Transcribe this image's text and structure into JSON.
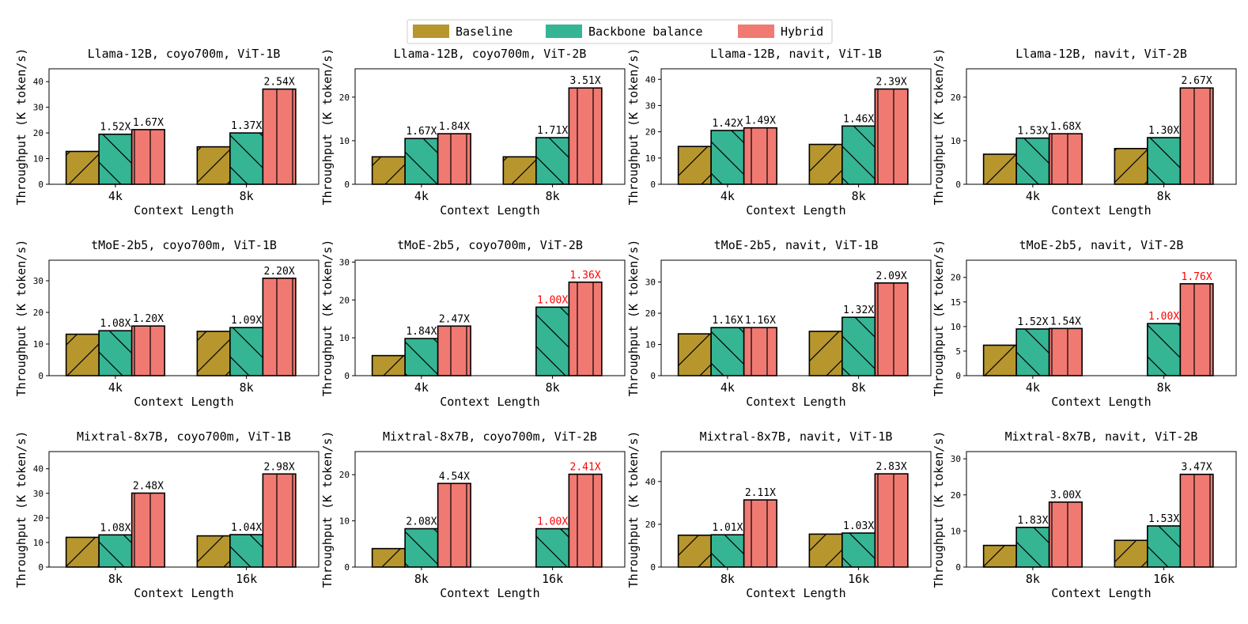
{
  "legend": {
    "items": [
      {
        "label": "Baseline",
        "color": "#B8962E",
        "hatch": "forward"
      },
      {
        "label": "Backbone balance",
        "color": "#35B594",
        "hatch": "back"
      },
      {
        "label": "Hybrid",
        "color": "#F07A72",
        "hatch": "vertical"
      }
    ],
    "placement": "top-center"
  },
  "highlight_color": "#FF0000",
  "chart_data": [
    {
      "type": "bar",
      "title": "Llama-12B, coyo700m, ViT-1B",
      "xlabel": "Context Length",
      "ylabel": "Throughput (K token/s)",
      "categories": [
        "4k",
        "8k"
      ],
      "ylim": [
        0,
        45
      ],
      "yticks": [
        0,
        10,
        20,
        30,
        40
      ],
      "grid": false,
      "series": [
        {
          "name": "Baseline",
          "values": [
            12.8,
            14.6
          ]
        },
        {
          "name": "Backbone balance",
          "values": [
            19.5,
            20.0
          ]
        },
        {
          "name": "Hybrid",
          "values": [
            21.3,
            37.1
          ]
        }
      ],
      "annotations": [
        {
          "category": "4k",
          "series": "Backbone balance",
          "text": "1.52X"
        },
        {
          "category": "4k",
          "series": "Hybrid",
          "text": "1.67X"
        },
        {
          "category": "8k",
          "series": "Backbone balance",
          "text": "1.37X"
        },
        {
          "category": "8k",
          "series": "Hybrid",
          "text": "2.54X"
        }
      ]
    },
    {
      "type": "bar",
      "title": "Llama-12B, coyo700m, ViT-2B",
      "xlabel": "Context Length",
      "ylabel": "Throughput (K token/s)",
      "categories": [
        "4k",
        "8k"
      ],
      "ylim": [
        0,
        26.5
      ],
      "yticks": [
        0,
        10,
        20
      ],
      "grid": false,
      "series": [
        {
          "name": "Baseline",
          "values": [
            6.3,
            6.3
          ]
        },
        {
          "name": "Backbone balance",
          "values": [
            10.5,
            10.7
          ]
        },
        {
          "name": "Hybrid",
          "values": [
            11.6,
            22.1
          ]
        }
      ],
      "annotations": [
        {
          "category": "4k",
          "series": "Backbone balance",
          "text": "1.67X"
        },
        {
          "category": "4k",
          "series": "Hybrid",
          "text": "1.84X"
        },
        {
          "category": "8k",
          "series": "Backbone balance",
          "text": "1.71X"
        },
        {
          "category": "8k",
          "series": "Hybrid",
          "text": "3.51X"
        }
      ]
    },
    {
      "type": "bar",
      "title": "Llama-12B, navit, ViT-1B",
      "xlabel": "Context Length",
      "ylabel": "Throughput (K token/s)",
      "categories": [
        "4k",
        "8k"
      ],
      "ylim": [
        0,
        44
      ],
      "yticks": [
        0,
        10,
        20,
        30,
        40
      ],
      "grid": false,
      "series": [
        {
          "name": "Baseline",
          "values": [
            14.4,
            15.2
          ]
        },
        {
          "name": "Backbone balance",
          "values": [
            20.5,
            22.2
          ]
        },
        {
          "name": "Hybrid",
          "values": [
            21.5,
            36.3
          ]
        }
      ],
      "annotations": [
        {
          "category": "4k",
          "series": "Backbone balance",
          "text": "1.42X"
        },
        {
          "category": "4k",
          "series": "Hybrid",
          "text": "1.49X"
        },
        {
          "category": "8k",
          "series": "Backbone balance",
          "text": "1.46X"
        },
        {
          "category": "8k",
          "series": "Hybrid",
          "text": "2.39X"
        }
      ]
    },
    {
      "type": "bar",
      "title": "Llama-12B, navit, ViT-2B",
      "xlabel": "Context Length",
      "ylabel": "Throughput (K token/s)",
      "categories": [
        "4k",
        "8k"
      ],
      "ylim": [
        0,
        26.5
      ],
      "yticks": [
        0,
        10,
        20
      ],
      "grid": false,
      "series": [
        {
          "name": "Baseline",
          "values": [
            6.9,
            8.2
          ]
        },
        {
          "name": "Backbone balance",
          "values": [
            10.6,
            10.7
          ]
        },
        {
          "name": "Hybrid",
          "values": [
            11.6,
            22.1
          ]
        }
      ],
      "annotations": [
        {
          "category": "4k",
          "series": "Backbone balance",
          "text": "1.53X"
        },
        {
          "category": "4k",
          "series": "Hybrid",
          "text": "1.68X"
        },
        {
          "category": "8k",
          "series": "Backbone balance",
          "text": "1.30X"
        },
        {
          "category": "8k",
          "series": "Hybrid",
          "text": "2.67X"
        }
      ]
    },
    {
      "type": "bar",
      "title": "tMoE-2b5, coyo700m, ViT-1B",
      "xlabel": "Context Length",
      "ylabel": "Throughput (K token/s)",
      "categories": [
        "4k",
        "8k"
      ],
      "ylim": [
        0,
        36.5
      ],
      "yticks": [
        0,
        10,
        20,
        30
      ],
      "grid": false,
      "series": [
        {
          "name": "Baseline",
          "values": [
            13.1,
            14.0
          ]
        },
        {
          "name": "Backbone balance",
          "values": [
            14.2,
            15.2
          ]
        },
        {
          "name": "Hybrid",
          "values": [
            15.7,
            30.8
          ]
        }
      ],
      "annotations": [
        {
          "category": "4k",
          "series": "Backbone balance",
          "text": "1.08X"
        },
        {
          "category": "4k",
          "series": "Hybrid",
          "text": "1.20X"
        },
        {
          "category": "8k",
          "series": "Backbone balance",
          "text": "1.09X"
        },
        {
          "category": "8k",
          "series": "Hybrid",
          "text": "2.20X"
        }
      ]
    },
    {
      "type": "bar",
      "title": "tMoE-2b5, coyo700m, ViT-2B",
      "xlabel": "Context Length",
      "ylabel": "Throughput (K token/s)",
      "categories": [
        "4k",
        "8k"
      ],
      "ylim": [
        0,
        30.5
      ],
      "yticks": [
        0,
        10,
        20,
        30
      ],
      "grid": false,
      "series": [
        {
          "name": "Baseline",
          "values": [
            5.3,
            0
          ]
        },
        {
          "name": "Backbone balance",
          "values": [
            9.8,
            18.1
          ]
        },
        {
          "name": "Hybrid",
          "values": [
            13.1,
            24.7
          ]
        }
      ],
      "annotations": [
        {
          "category": "4k",
          "series": "Backbone balance",
          "text": "1.84X"
        },
        {
          "category": "4k",
          "series": "Hybrid",
          "text": "2.47X"
        },
        {
          "category": "8k",
          "series": "Backbone balance",
          "text": "1.00X",
          "highlight": true
        },
        {
          "category": "8k",
          "series": "Hybrid",
          "text": "1.36X",
          "highlight": true
        }
      ]
    },
    {
      "type": "bar",
      "title": "tMoE-2b5, navit, ViT-1B",
      "xlabel": "Context Length",
      "ylabel": "Throughput (K token/s)",
      "categories": [
        "4k",
        "8k"
      ],
      "ylim": [
        0,
        37
      ],
      "yticks": [
        0,
        10,
        20,
        30
      ],
      "grid": false,
      "series": [
        {
          "name": "Baseline",
          "values": [
            13.4,
            14.2
          ]
        },
        {
          "name": "Backbone balance",
          "values": [
            15.4,
            18.7
          ]
        },
        {
          "name": "Hybrid",
          "values": [
            15.4,
            29.7
          ]
        }
      ],
      "annotations": [
        {
          "category": "4k",
          "series": "Backbone balance",
          "text": "1.16X"
        },
        {
          "category": "4k",
          "series": "Hybrid",
          "text": "1.16X"
        },
        {
          "category": "8k",
          "series": "Backbone balance",
          "text": "1.32X"
        },
        {
          "category": "8k",
          "series": "Hybrid",
          "text": "2.09X"
        }
      ]
    },
    {
      "type": "bar",
      "title": "tMoE-2b5, navit, ViT-2B",
      "xlabel": "Context Length",
      "ylabel": "Throughput (K token/s)",
      "categories": [
        "4k",
        "8k"
      ],
      "ylim": [
        0,
        23.5
      ],
      "yticks": [
        0,
        5,
        10,
        15,
        20
      ],
      "grid": false,
      "series": [
        {
          "name": "Baseline",
          "values": [
            6.2,
            0
          ]
        },
        {
          "name": "Backbone balance",
          "values": [
            9.5,
            10.6
          ]
        },
        {
          "name": "Hybrid",
          "values": [
            9.6,
            18.7
          ]
        }
      ],
      "annotations": [
        {
          "category": "4k",
          "series": "Backbone balance",
          "text": "1.52X"
        },
        {
          "category": "4k",
          "series": "Hybrid",
          "text": "1.54X"
        },
        {
          "category": "8k",
          "series": "Backbone balance",
          "text": "1.00X",
          "highlight": true
        },
        {
          "category": "8k",
          "series": "Hybrid",
          "text": "1.76X",
          "highlight": true
        }
      ]
    },
    {
      "type": "bar",
      "title": "Mixtral-8x7B, coyo700m, ViT-1B",
      "xlabel": "Context Length",
      "ylabel": "Throughput (K token/s)",
      "categories": [
        "8k",
        "16k"
      ],
      "ylim": [
        0,
        47
      ],
      "yticks": [
        0,
        10,
        20,
        30,
        40
      ],
      "grid": false,
      "series": [
        {
          "name": "Baseline",
          "values": [
            12.1,
            12.7
          ]
        },
        {
          "name": "Backbone balance",
          "values": [
            13.1,
            13.2
          ]
        },
        {
          "name": "Hybrid",
          "values": [
            30.1,
            37.9
          ]
        }
      ],
      "annotations": [
        {
          "category": "8k",
          "series": "Backbone balance",
          "text": "1.08X"
        },
        {
          "category": "8k",
          "series": "Hybrid",
          "text": "2.48X"
        },
        {
          "category": "16k",
          "series": "Backbone balance",
          "text": "1.04X"
        },
        {
          "category": "16k",
          "series": "Hybrid",
          "text": "2.98X"
        }
      ]
    },
    {
      "type": "bar",
      "title": "Mixtral-8x7B, coyo700m, ViT-2B",
      "xlabel": "Context Length",
      "ylabel": "Throughput (K token/s)",
      "categories": [
        "8k",
        "16k"
      ],
      "ylim": [
        0,
        25
      ],
      "yticks": [
        0,
        10,
        20
      ],
      "grid": false,
      "series": [
        {
          "name": "Baseline",
          "values": [
            4.0,
            0
          ]
        },
        {
          "name": "Backbone balance",
          "values": [
            8.3,
            8.3
          ]
        },
        {
          "name": "Hybrid",
          "values": [
            18.1,
            20.1
          ]
        }
      ],
      "annotations": [
        {
          "category": "8k",
          "series": "Backbone balance",
          "text": "2.08X"
        },
        {
          "category": "8k",
          "series": "Hybrid",
          "text": "4.54X"
        },
        {
          "category": "16k",
          "series": "Backbone balance",
          "text": "1.00X",
          "highlight": true
        },
        {
          "category": "16k",
          "series": "Hybrid",
          "text": "2.41X",
          "highlight": true
        }
      ]
    },
    {
      "type": "bar",
      "title": "Mixtral-8x7B, navit, ViT-1B",
      "xlabel": "Context Length",
      "ylabel": "Throughput (K token/s)",
      "categories": [
        "8k",
        "16k"
      ],
      "ylim": [
        0,
        54
      ],
      "yticks": [
        0,
        20,
        40
      ],
      "grid": false,
      "series": [
        {
          "name": "Baseline",
          "values": [
            14.9,
            15.4
          ]
        },
        {
          "name": "Backbone balance",
          "values": [
            15.1,
            15.9
          ]
        },
        {
          "name": "Hybrid",
          "values": [
            31.4,
            43.6
          ]
        }
      ],
      "annotations": [
        {
          "category": "8k",
          "series": "Backbone balance",
          "text": "1.01X"
        },
        {
          "category": "8k",
          "series": "Hybrid",
          "text": "2.11X"
        },
        {
          "category": "16k",
          "series": "Backbone balance",
          "text": "1.03X"
        },
        {
          "category": "16k",
          "series": "Hybrid",
          "text": "2.83X"
        }
      ]
    },
    {
      "type": "bar",
      "title": "Mixtral-8x7B, navit, ViT-2B",
      "xlabel": "Context Length",
      "ylabel": "Throughput (K token/s)",
      "categories": [
        "8k",
        "16k"
      ],
      "ylim": [
        0,
        32
      ],
      "yticks": [
        0,
        10,
        20,
        30
      ],
      "grid": false,
      "series": [
        {
          "name": "Baseline",
          "values": [
            6.0,
            7.4
          ]
        },
        {
          "name": "Backbone balance",
          "values": [
            11.0,
            11.4
          ]
        },
        {
          "name": "Hybrid",
          "values": [
            18.0,
            25.7
          ]
        }
      ],
      "annotations": [
        {
          "category": "8k",
          "series": "Backbone balance",
          "text": "1.83X"
        },
        {
          "category": "8k",
          "series": "Hybrid",
          "text": "3.00X"
        },
        {
          "category": "16k",
          "series": "Backbone balance",
          "text": "1.53X"
        },
        {
          "category": "16k",
          "series": "Hybrid",
          "text": "3.47X"
        }
      ]
    }
  ]
}
